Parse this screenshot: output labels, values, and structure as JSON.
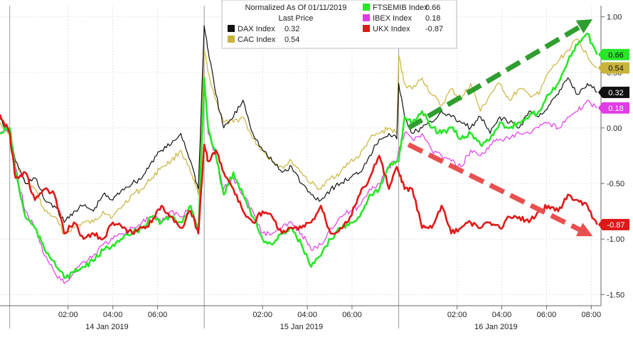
{
  "chart_data": {
    "type": "line",
    "legend": {
      "title": "Normalized As Of 01/11/2019",
      "subtitle": "Last Price",
      "placement": "top-center"
    },
    "ylim": [
      -1.6,
      1.1
    ],
    "yticks": [
      {
        "value": 1.0,
        "label": "1.00"
      },
      {
        "value": 0.5,
        "label": "0.50"
      },
      {
        "value": 0.0,
        "label": "0.00"
      },
      {
        "value": -0.5,
        "label": "-0.50"
      },
      {
        "value": -1.0,
        "label": "-1.00"
      },
      {
        "value": -1.5,
        "label": "-1.50"
      }
    ],
    "xlim": [
      -0.05,
      3.04
    ],
    "xticks": [
      {
        "x": 0.3,
        "label": "02:00"
      },
      {
        "x": 0.53,
        "label": "04:00"
      },
      {
        "x": 0.76,
        "label": "06:00"
      },
      {
        "x": 1.3,
        "label": "02:00"
      },
      {
        "x": 1.53,
        "label": "04:00"
      },
      {
        "x": 1.76,
        "label": "06:00"
      },
      {
        "x": 2.3,
        "label": "02:00"
      },
      {
        "x": 2.53,
        "label": "04:00"
      },
      {
        "x": 2.76,
        "label": "06:00"
      },
      {
        "x": 2.99,
        "label": "08:00"
      }
    ],
    "day_labels": [
      {
        "x": 0.5,
        "label": "14 Jan 2019"
      },
      {
        "x": 1.5,
        "label": "15 Jan 2019"
      },
      {
        "x": 2.5,
        "label": "16 Jan 2019"
      }
    ],
    "day_boundaries": [
      0.0,
      1.0,
      2.0
    ],
    "grid": true,
    "series": [
      {
        "name": "DAX Index",
        "last": "0.32",
        "color": "#111111",
        "x": [
          -0.05,
          0.0,
          0.03,
          0.08,
          0.13,
          0.18,
          0.23,
          0.28,
          0.33,
          0.38,
          0.43,
          0.48,
          0.53,
          0.58,
          0.63,
          0.68,
          0.73,
          0.78,
          0.83,
          0.88,
          0.93,
          0.97,
          1.0,
          1.02,
          1.06,
          1.1,
          1.15,
          1.2,
          1.25,
          1.3,
          1.35,
          1.4,
          1.45,
          1.5,
          1.55,
          1.6,
          1.65,
          1.7,
          1.75,
          1.8,
          1.85,
          1.9,
          1.95,
          1.99,
          2.0,
          2.03,
          2.07,
          2.12,
          2.17,
          2.22,
          2.27,
          2.32,
          2.37,
          2.42,
          2.47,
          2.52,
          2.57,
          2.62,
          2.67,
          2.72,
          2.77,
          2.82,
          2.87,
          2.92,
          2.97,
          3.02
        ],
        "y": [
          0.08,
          -0.05,
          -0.3,
          -0.5,
          -0.45,
          -0.65,
          -0.7,
          -0.85,
          -0.75,
          -0.7,
          -0.75,
          -0.6,
          -0.65,
          -0.55,
          -0.5,
          -0.45,
          -0.3,
          -0.2,
          -0.15,
          -0.05,
          -0.3,
          -0.55,
          0.92,
          0.7,
          0.3,
          0.0,
          0.1,
          0.25,
          -0.05,
          -0.2,
          -0.3,
          -0.4,
          -0.35,
          -0.5,
          -0.6,
          -0.65,
          -0.55,
          -0.5,
          -0.45,
          -0.4,
          -0.25,
          -0.1,
          -0.05,
          -0.1,
          0.4,
          0.1,
          -0.05,
          0.0,
          0.05,
          0.15,
          0.1,
          0.05,
          0.0,
          0.1,
          -0.05,
          0.1,
          0.05,
          0.0,
          0.15,
          0.1,
          0.2,
          0.3,
          0.45,
          0.3,
          0.4,
          0.32
        ]
      },
      {
        "name": "CAC Index",
        "last": "0.54",
        "color": "#c9b33a",
        "x": [
          -0.05,
          0.0,
          0.03,
          0.08,
          0.13,
          0.18,
          0.23,
          0.28,
          0.33,
          0.38,
          0.43,
          0.48,
          0.53,
          0.58,
          0.63,
          0.68,
          0.73,
          0.78,
          0.83,
          0.88,
          0.93,
          0.97,
          1.0,
          1.02,
          1.06,
          1.1,
          1.15,
          1.2,
          1.25,
          1.3,
          1.35,
          1.4,
          1.45,
          1.5,
          1.55,
          1.6,
          1.65,
          1.7,
          1.75,
          1.8,
          1.85,
          1.9,
          1.95,
          1.99,
          2.0,
          2.03,
          2.07,
          2.12,
          2.17,
          2.22,
          2.27,
          2.32,
          2.37,
          2.42,
          2.47,
          2.52,
          2.57,
          2.62,
          2.67,
          2.72,
          2.77,
          2.82,
          2.87,
          2.92,
          2.97,
          3.02
        ],
        "y": [
          0.05,
          -0.05,
          -0.3,
          -0.5,
          -0.55,
          -0.75,
          -0.8,
          -0.95,
          -0.9,
          -0.85,
          -0.85,
          -0.75,
          -0.8,
          -0.7,
          -0.6,
          -0.55,
          -0.45,
          -0.35,
          -0.3,
          -0.2,
          -0.4,
          -0.6,
          0.7,
          0.5,
          0.25,
          0.05,
          0.05,
          0.1,
          -0.1,
          -0.2,
          -0.3,
          -0.35,
          -0.3,
          -0.4,
          -0.5,
          -0.55,
          -0.45,
          -0.4,
          -0.3,
          -0.25,
          -0.1,
          -0.05,
          0.0,
          -0.05,
          0.65,
          0.4,
          0.35,
          0.45,
          0.3,
          0.2,
          0.35,
          0.25,
          0.4,
          0.15,
          0.3,
          0.4,
          0.25,
          0.35,
          0.3,
          0.3,
          0.5,
          0.6,
          0.7,
          0.8,
          0.65,
          0.54
        ]
      },
      {
        "name": "FTSEMIB Index",
        "last": "0.66",
        "color": "#29e629",
        "x": [
          -0.05,
          0.0,
          0.03,
          0.08,
          0.13,
          0.18,
          0.23,
          0.28,
          0.33,
          0.38,
          0.43,
          0.48,
          0.53,
          0.58,
          0.63,
          0.68,
          0.73,
          0.78,
          0.83,
          0.88,
          0.93,
          0.97,
          1.0,
          1.02,
          1.06,
          1.1,
          1.15,
          1.2,
          1.25,
          1.3,
          1.35,
          1.4,
          1.45,
          1.5,
          1.55,
          1.6,
          1.65,
          1.7,
          1.75,
          1.8,
          1.85,
          1.9,
          1.95,
          1.99,
          2.0,
          2.03,
          2.07,
          2.12,
          2.17,
          2.22,
          2.27,
          2.32,
          2.37,
          2.42,
          2.47,
          2.52,
          2.57,
          2.62,
          2.67,
          2.72,
          2.77,
          2.82,
          2.87,
          2.92,
          2.97,
          3.02
        ],
        "y": [
          -0.05,
          0.0,
          -0.4,
          -0.8,
          -0.9,
          -1.1,
          -1.2,
          -1.35,
          -1.3,
          -1.25,
          -1.2,
          -1.1,
          -1.05,
          -1.0,
          -0.95,
          -0.9,
          -0.8,
          -0.85,
          -0.8,
          -0.85,
          -0.7,
          -0.95,
          0.45,
          0.0,
          -0.25,
          -0.6,
          -0.4,
          -0.6,
          -0.8,
          -1.0,
          -1.05,
          -0.95,
          -0.9,
          -1.05,
          -1.25,
          -1.15,
          -1.0,
          -0.9,
          -0.85,
          -0.8,
          -0.6,
          -0.55,
          -0.35,
          -0.3,
          -0.3,
          0.1,
          0.05,
          0.15,
          0.0,
          -0.05,
          0.0,
          -0.1,
          -0.05,
          -0.15,
          -0.1,
          0.05,
          0.0,
          0.05,
          0.1,
          0.15,
          0.3,
          0.4,
          0.6,
          0.75,
          0.85,
          0.66
        ]
      },
      {
        "name": "IBEX Index",
        "last": "0.18",
        "color": "#e23be8",
        "x": [
          -0.05,
          0.0,
          0.03,
          0.08,
          0.13,
          0.18,
          0.23,
          0.28,
          0.33,
          0.38,
          0.43,
          0.48,
          0.53,
          0.58,
          0.63,
          0.68,
          0.73,
          0.78,
          0.83,
          0.88,
          0.93,
          0.97,
          1.0,
          1.02,
          1.06,
          1.1,
          1.15,
          1.2,
          1.25,
          1.3,
          1.35,
          1.4,
          1.45,
          1.5,
          1.55,
          1.6,
          1.65,
          1.7,
          1.75,
          1.8,
          1.85,
          1.9,
          1.95,
          1.99,
          2.0,
          2.03,
          2.07,
          2.12,
          2.17,
          2.22,
          2.27,
          2.32,
          2.37,
          2.42,
          2.47,
          2.52,
          2.57,
          2.62,
          2.67,
          2.72,
          2.77,
          2.82,
          2.87,
          2.92,
          2.97,
          3.02
        ],
        "y": [
          -0.05,
          0.0,
          -0.35,
          -0.75,
          -0.9,
          -1.15,
          -1.3,
          -1.4,
          -1.3,
          -1.2,
          -1.15,
          -1.05,
          -1.0,
          -0.95,
          -0.9,
          -0.85,
          -0.8,
          -0.85,
          -0.75,
          -0.8,
          -0.7,
          -0.9,
          0.4,
          -0.05,
          -0.25,
          -0.55,
          -0.45,
          -0.6,
          -0.75,
          -0.95,
          -0.95,
          -0.9,
          -0.85,
          -0.95,
          -1.1,
          -1.05,
          -0.9,
          -0.8,
          -0.75,
          -0.7,
          -0.55,
          -0.5,
          -0.35,
          -0.3,
          -0.2,
          -0.05,
          -0.1,
          -0.05,
          -0.2,
          -0.25,
          -0.3,
          -0.35,
          -0.2,
          -0.25,
          -0.15,
          -0.1,
          -0.1,
          -0.05,
          -0.05,
          0.0,
          0.05,
          0.0,
          0.1,
          0.15,
          0.25,
          0.18
        ]
      },
      {
        "name": "UKX Index",
        "last": "-0.87",
        "color": "#e01818",
        "x": [
          -0.05,
          0.0,
          0.03,
          0.08,
          0.13,
          0.18,
          0.23,
          0.28,
          0.33,
          0.38,
          0.43,
          0.48,
          0.53,
          0.58,
          0.63,
          0.68,
          0.73,
          0.78,
          0.83,
          0.88,
          0.93,
          0.97,
          1.0,
          1.02,
          1.06,
          1.1,
          1.15,
          1.2,
          1.25,
          1.3,
          1.35,
          1.4,
          1.45,
          1.5,
          1.55,
          1.6,
          1.65,
          1.7,
          1.75,
          1.8,
          1.85,
          1.9,
          1.95,
          1.99,
          2.0,
          2.03,
          2.07,
          2.12,
          2.17,
          2.22,
          2.27,
          2.32,
          2.37,
          2.42,
          2.47,
          2.52,
          2.57,
          2.62,
          2.67,
          2.72,
          2.77,
          2.82,
          2.87,
          2.92,
          2.97,
          3.02
        ],
        "y": [
          0.12,
          -0.05,
          -0.45,
          -0.4,
          -0.65,
          -0.55,
          -0.6,
          -0.95,
          -0.85,
          -1.0,
          -0.95,
          -1.0,
          -0.85,
          -0.9,
          -0.95,
          -0.9,
          -0.85,
          -0.7,
          -0.8,
          -0.9,
          -0.75,
          -0.95,
          -0.15,
          -0.3,
          -0.2,
          -0.4,
          -0.55,
          -0.75,
          -0.85,
          -0.75,
          -0.8,
          -0.95,
          -0.9,
          -0.9,
          -0.85,
          -0.7,
          -0.95,
          -0.9,
          -0.8,
          -0.6,
          -0.45,
          -0.25,
          -0.55,
          -0.35,
          -0.4,
          -0.55,
          -0.55,
          -0.9,
          -0.9,
          -0.7,
          -0.95,
          -0.9,
          -0.85,
          -0.9,
          -0.85,
          -0.9,
          -0.8,
          -0.8,
          -0.85,
          -0.75,
          -0.7,
          -0.75,
          -0.6,
          -0.65,
          -0.7,
          -0.87
        ]
      }
    ],
    "arrows": [
      {
        "color": "#2e9e2e",
        "from": [
          2.05,
          0.0
        ],
        "to": [
          2.97,
          0.95
        ]
      },
      {
        "color": "#e85050",
        "from": [
          2.05,
          -0.15
        ],
        "to": [
          2.97,
          -0.95
        ]
      }
    ]
  }
}
